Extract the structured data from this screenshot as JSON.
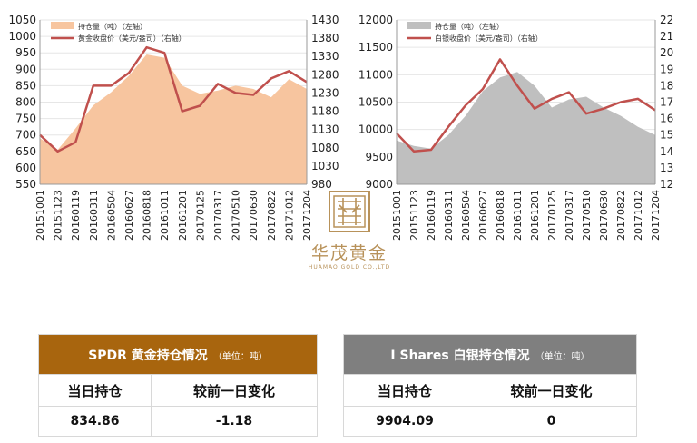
{
  "charts": [
    {
      "id": "gold",
      "left_ticks": [
        "1050",
        "1000",
        "950",
        "900",
        "850",
        "800",
        "750",
        "700",
        "650",
        "600",
        "550"
      ],
      "right_ticks": [
        "1430",
        "1380",
        "1330",
        "1280",
        "1230",
        "1180",
        "1130",
        "1080",
        "1030",
        "980"
      ],
      "legend": [
        "持仓量（吨）（左轴）",
        "黄金收盘价（美元/盎司）（右轴）"
      ],
      "area_color": "#f7c59f",
      "line_color": "#c0504d"
    },
    {
      "id": "silver",
      "left_ticks": [
        "12000",
        "11500",
        "11000",
        "10500",
        "10000",
        "9500",
        "9000"
      ],
      "right_ticks": [
        "22",
        "21",
        "20",
        "19",
        "18",
        "17",
        "16",
        "15",
        "14",
        "13",
        "12"
      ],
      "legend": [
        "持仓量（吨）（左轴）",
        "白银收盘价（美元/盎司）（右轴）"
      ],
      "area_color": "#bfbfbf",
      "line_color": "#c0504d"
    }
  ],
  "chart_data": [
    {
      "type": "area",
      "x": [
        "20151001",
        "20151123",
        "20160119",
        "20160311",
        "20160504",
        "20160627",
        "20160818",
        "20161011",
        "20161201",
        "20170125",
        "20170317",
        "20170510",
        "20170630",
        "20170822",
        "20171012",
        "20171204"
      ],
      "ylim": [
        550,
        1050
      ],
      "y2lim": [
        980,
        1430
      ],
      "series": [
        {
          "name": "持仓量（吨）（左轴）",
          "axis": "left",
          "type": "area",
          "values": [
            690,
            655,
            720,
            790,
            830,
            880,
            945,
            935,
            850,
            825,
            835,
            850,
            840,
            815,
            870,
            840
          ]
        },
        {
          "name": "黄金收盘价（美元/盎司）（右轴）",
          "axis": "right",
          "type": "line",
          "values": [
            1115,
            1070,
            1095,
            1250,
            1250,
            1285,
            1355,
            1340,
            1180,
            1195,
            1255,
            1230,
            1225,
            1270,
            1290,
            1260
          ]
        }
      ]
    },
    {
      "type": "area",
      "x": [
        "20151001",
        "20151123",
        "20160119",
        "20160311",
        "20160504",
        "20160627",
        "20160818",
        "20161011",
        "20161201",
        "20170125",
        "20170317",
        "20170510",
        "20170630",
        "20170822",
        "20171012",
        "20171204"
      ],
      "ylim": [
        9000,
        12000
      ],
      "y2lim": [
        12,
        22
      ],
      "series": [
        {
          "name": "持仓量（吨）（左轴）",
          "axis": "left",
          "type": "area",
          "values": [
            9800,
            9700,
            9650,
            9900,
            10250,
            10700,
            10950,
            11050,
            10800,
            10400,
            10550,
            10600,
            10400,
            10250,
            10050,
            9900
          ]
        },
        {
          "name": "白银收盘价（美元/盎司）（右轴）",
          "axis": "right",
          "type": "line",
          "values": [
            15.1,
            14.0,
            14.1,
            15.5,
            16.8,
            17.8,
            19.6,
            18.0,
            16.6,
            17.2,
            17.6,
            16.3,
            16.6,
            17.0,
            17.2,
            16.5
          ]
        }
      ]
    }
  ],
  "logo": {
    "name": "华茂黄金",
    "sub": "HUAMAO GOLD CO.,LTD"
  },
  "tables": {
    "gold": {
      "title": "SPDR 黄金持仓情况",
      "unit": "（单位：吨）",
      "col1": "当日持仓",
      "col2": "较前一日变化",
      "holding": "834.86",
      "change": "-1.18"
    },
    "silver": {
      "title": "I Shares 白银持仓情况",
      "unit": "（单位：吨）",
      "col1": "当日持仓",
      "col2": "较前一日变化",
      "holding": "9904.09",
      "change": "0"
    }
  }
}
